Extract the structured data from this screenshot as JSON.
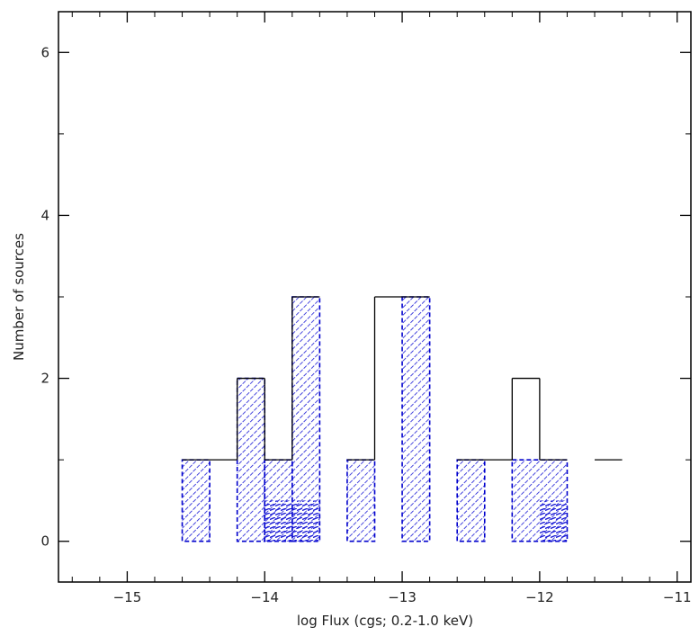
{
  "chart_data": {
    "type": "bar",
    "title": "",
    "xlabel": "log Flux (cgs; 0.2-1.0 keV)",
    "ylabel": "Number of sources",
    "xlim": [
      -15.5,
      -10.9
    ],
    "ylim": [
      -0.5,
      6.5
    ],
    "grid": false,
    "legend": "none",
    "x_ticks": [
      -15,
      -14,
      -13,
      -12,
      -11
    ],
    "x_tick_labels": [
      "−15",
      "−14",
      "−13",
      "−12",
      "−11"
    ],
    "y_ticks": [
      0,
      2,
      4,
      6
    ],
    "y_tick_labels": [
      "0",
      "2",
      "4",
      "6"
    ],
    "series": [
      {
        "style": "outline-step",
        "color": "#000000",
        "bins": [
          {
            "x0": -14.6,
            "x1": -14.2,
            "value": 1
          },
          {
            "x0": -14.2,
            "x1": -14.0,
            "value": 2
          },
          {
            "x0": -14.0,
            "x1": -13.8,
            "value": 1
          },
          {
            "x0": -13.8,
            "x1": -13.6,
            "value": 3
          },
          {
            "x0": -13.4,
            "x1": -13.2,
            "value": 1
          },
          {
            "x0": -13.2,
            "x1": -13.0,
            "value": 3
          },
          {
            "x0": -13.0,
            "x1": -12.8,
            "value": 3
          },
          {
            "x0": -12.6,
            "x1": -12.2,
            "value": 1
          },
          {
            "x0": -12.2,
            "x1": -12.0,
            "value": 2
          },
          {
            "x0": -12.0,
            "x1": -11.8,
            "value": 1
          },
          {
            "x0": -11.6,
            "x1": -11.4,
            "value": 1
          }
        ]
      },
      {
        "style": "hatched",
        "color": "#0000cc",
        "bins": [
          {
            "x0": -14.6,
            "x1": -14.4,
            "value": 1
          },
          {
            "x0": -14.2,
            "x1": -14.0,
            "value": 2
          },
          {
            "x0": -14.0,
            "x1": -13.8,
            "value": 1
          },
          {
            "x0": -13.8,
            "x1": -13.6,
            "value": 3
          },
          {
            "x0": -13.4,
            "x1": -13.2,
            "value": 1
          },
          {
            "x0": -13.0,
            "x1": -12.8,
            "value": 3
          },
          {
            "x0": -12.6,
            "x1": -12.4,
            "value": 1
          },
          {
            "x0": -12.2,
            "x1": -11.8,
            "value": 1
          }
        ]
      },
      {
        "style": "hatched-inner",
        "color": "#0000cc",
        "bins": [
          {
            "x0": -14.0,
            "x1": -13.6,
            "value": 0.5
          },
          {
            "x0": -12.0,
            "x1": -11.8,
            "value": 0.5
          }
        ]
      }
    ]
  }
}
